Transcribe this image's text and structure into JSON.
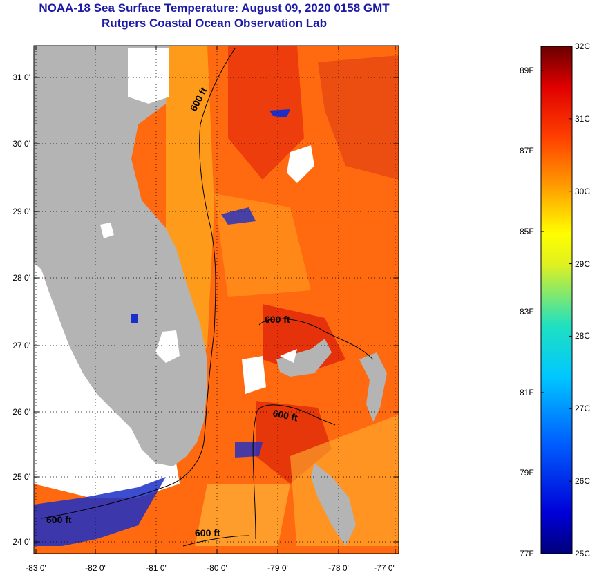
{
  "header": {
    "title": "NOAA-18 Sea Surface Temperature:  August 09, 2020 0158 GMT",
    "subtitle": "Rutgers Coastal Ocean Observation Lab"
  },
  "map": {
    "lat_ticks": [
      "31 0'",
      "30 0'",
      "29 0'",
      "28 0'",
      "27 0'",
      "26 0'",
      "25 0'",
      "24 0'"
    ],
    "lon_ticks": [
      "-83 0'",
      "-82 0'",
      "-81 0'",
      "-80 0'",
      "-79 0'",
      "-78 0'",
      "-77 0'"
    ],
    "contour_label": "600 ft",
    "colors": {
      "land": "#b4b4b4",
      "sea_warm": "#ff6a10",
      "sea_hot": "#e02a0a",
      "sea_mid": "#ffb020",
      "cool": "#1b2ec8",
      "cloud": "#ffffff"
    }
  },
  "colorbar": {
    "celsius_labels": [
      "32C",
      "31C",
      "30C",
      "29C",
      "28C",
      "27C",
      "26C",
      "25C"
    ],
    "fahrenheit_labels": [
      "89F",
      "87F",
      "85F",
      "83F",
      "81F",
      "79F",
      "77F"
    ]
  }
}
